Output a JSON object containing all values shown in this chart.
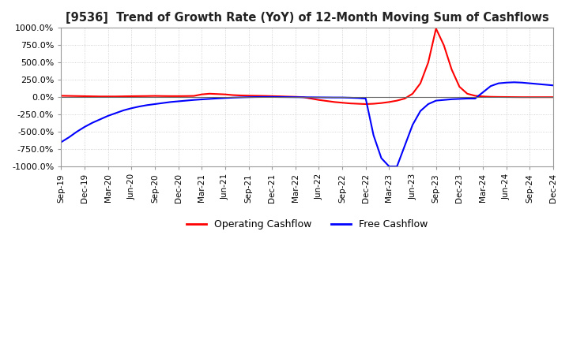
{
  "title": "[9536]  Trend of Growth Rate (YoY) of 12-Month Moving Sum of Cashflows",
  "ylim": [
    -1000,
    1000
  ],
  "yticks": [
    1000.0,
    750.0,
    500.0,
    250.0,
    0.0,
    -250.0,
    -500.0,
    -750.0,
    -1000.0
  ],
  "ytick_labels": [
    "1000.0%",
    "750.0%",
    "500.0%",
    "250.0%",
    "0.0%",
    "-250.0%",
    "-500.0%",
    "-750.0%",
    "-1000.0%"
  ],
  "background_color": "#FFFFFF",
  "grid_color": "#C8C8C8",
  "legend": [
    "Operating Cashflow",
    "Free Cashflow"
  ],
  "legend_colors": [
    "#FF0000",
    "#0000FF"
  ],
  "operating_cashflow": [
    20,
    18,
    16,
    14,
    12,
    10,
    10,
    10,
    12,
    14,
    15,
    16,
    18,
    16,
    15,
    15,
    16,
    18,
    40,
    50,
    45,
    40,
    30,
    25,
    22,
    20,
    18,
    15,
    12,
    8,
    5,
    0,
    -20,
    -40,
    -55,
    -70,
    -80,
    -90,
    -95,
    -100,
    -95,
    -85,
    -70,
    -50,
    -20,
    50,
    200,
    500,
    990,
    750,
    400,
    150,
    50,
    20,
    10,
    5,
    3,
    2,
    1,
    0,
    0,
    0,
    0,
    0
  ],
  "free_cashflow": [
    -650,
    -580,
    -500,
    -430,
    -370,
    -320,
    -270,
    -230,
    -190,
    -160,
    -135,
    -115,
    -100,
    -85,
    -70,
    -60,
    -50,
    -40,
    -32,
    -25,
    -18,
    -12,
    -7,
    -3,
    0,
    2,
    3,
    3,
    2,
    1,
    0,
    -1,
    -2,
    -3,
    -4,
    -5,
    -5,
    -8,
    -12,
    -20,
    -550,
    -880,
    -1000,
    -1000,
    -700,
    -400,
    -200,
    -100,
    -50,
    -40,
    -30,
    -25,
    -20,
    -20,
    70,
    160,
    200,
    210,
    215,
    210,
    200,
    190,
    180,
    170
  ],
  "xtick_labels": [
    "Sep-19",
    "Dec-19",
    "Mar-20",
    "Jun-20",
    "Sep-20",
    "Dec-20",
    "Mar-21",
    "Jun-21",
    "Sep-21",
    "Dec-21",
    "Mar-22",
    "Jun-22",
    "Sep-22",
    "Dec-22",
    "Mar-23",
    "Jun-23",
    "Sep-23",
    "Dec-23",
    "Mar-24",
    "Jun-24",
    "Sep-24",
    "Dec-24"
  ]
}
